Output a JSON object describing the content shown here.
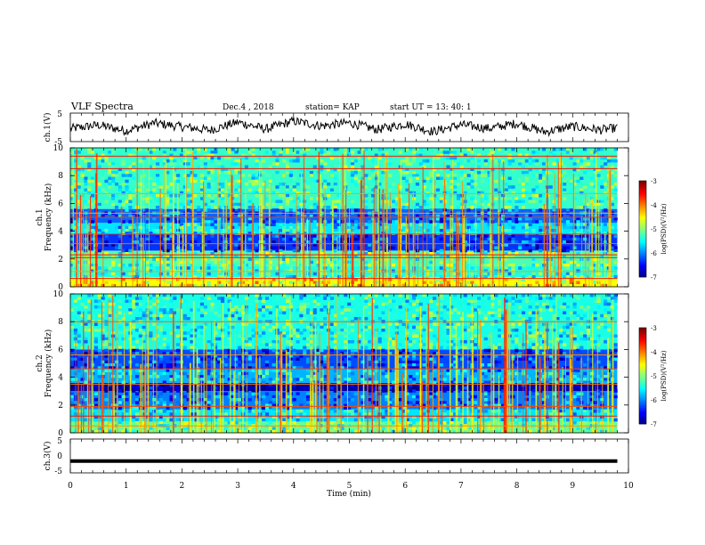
{
  "header": {
    "title": "VLF Spectra",
    "date": "Dec.4 , 2018",
    "station": "station= KAP",
    "start": "start UT = 13: 40: 1"
  },
  "colors": {
    "background": "#ffffff",
    "axes": "#000000",
    "trace": "#000000"
  },
  "chart_data": [
    {
      "type": "line",
      "name": "ch1-waveform",
      "ylabel": "ch.1(V)",
      "ylim": [
        -5,
        5
      ],
      "yticks": [
        "5",
        "-5"
      ],
      "xlim": [
        0,
        10
      ],
      "description_values": "noisy waveform oscillating roughly between -2 and +2.5 V over 0-9.8 min",
      "x": [
        0,
        0.5,
        1,
        1.5,
        2,
        2.5,
        3,
        3.5,
        4,
        4.5,
        5,
        5.5,
        6,
        6.5,
        7,
        7.5,
        8,
        8.5,
        9,
        9.5,
        9.8
      ],
      "y": [
        -0.5,
        0.8,
        -1.2,
        1.5,
        0.2,
        -1.0,
        1.8,
        -0.6,
        2.2,
        0.5,
        1.6,
        -0.8,
        1.2,
        -1.5,
        0.9,
        -0.4,
        1.4,
        -1.6,
        0.3,
        -0.9,
        -0.2
      ]
    },
    {
      "type": "heatmap",
      "name": "ch1-spectrogram",
      "ylabel": "ch.1",
      "ylabel2": "Frequency (kHz)",
      "ylim": [
        0,
        10
      ],
      "yticks": [
        "0",
        "2",
        "4",
        "6",
        "8",
        "10"
      ],
      "xlim": [
        0,
        9.8
      ],
      "colorbar": {
        "label": "log(PSD)(V²/Hz)",
        "ticks": [
          "-3",
          "-4",
          "-5",
          "-6",
          "-7"
        ],
        "range": [
          -7,
          -3
        ]
      },
      "bands": [
        {
          "f0": 0,
          "f1": 0.7,
          "level": -4.5
        },
        {
          "f0": 0.7,
          "f1": 1.5,
          "level": -5.4
        },
        {
          "f0": 1.5,
          "f1": 2.6,
          "level": -5.2
        },
        {
          "f0": 2.6,
          "f1": 3.8,
          "level": -6.3
        },
        {
          "f0": 3.8,
          "f1": 4.6,
          "level": -5.6
        },
        {
          "f0": 4.6,
          "f1": 5.6,
          "level": -6.1
        },
        {
          "f0": 5.6,
          "f1": 10,
          "level": -5.3
        }
      ],
      "lines_khz": [
        0.6,
        1.1,
        2.1,
        2.3,
        3.1,
        3.8,
        5.0,
        5.3,
        6.7,
        8.5,
        9.4
      ]
    },
    {
      "type": "heatmap",
      "name": "ch2-spectrogram",
      "ylabel": "ch.2",
      "ylabel2": "Frequency (kHz)",
      "ylim": [
        0,
        10
      ],
      "yticks": [
        "0",
        "2",
        "4",
        "6",
        "8",
        "10"
      ],
      "xlim": [
        0,
        9.8
      ],
      "colorbar": {
        "label": "log(PSD)(V²/Hz)",
        "ticks": [
          "-3",
          "-4",
          "-5",
          "-6",
          "-7"
        ],
        "range": [
          -7,
          -3
        ]
      },
      "bands": [
        {
          "f0": 0,
          "f1": 0.8,
          "level": -5.1
        },
        {
          "f0": 0.8,
          "f1": 1.7,
          "level": -5.6
        },
        {
          "f0": 1.7,
          "f1": 3.0,
          "level": -6.0
        },
        {
          "f0": 3.0,
          "f1": 3.6,
          "level": -6.8
        },
        {
          "f0": 3.6,
          "f1": 4.6,
          "level": -5.8
        },
        {
          "f0": 4.6,
          "f1": 6.0,
          "level": -6.2
        },
        {
          "f0": 6.0,
          "f1": 10,
          "level": -5.4
        }
      ],
      "lines_khz": [
        0.5,
        1.2,
        1.9,
        3.5,
        4.6,
        5.6,
        8.0
      ]
    },
    {
      "type": "line",
      "name": "ch3-waveform",
      "ylabel": "ch.3(V)",
      "ylim": [
        -5,
        5
      ],
      "yticks": [
        "5",
        "0",
        "-5"
      ],
      "xlim": [
        0,
        10
      ],
      "x": [
        0,
        9.8
      ],
      "y": [
        -1.5,
        -1.5
      ],
      "xlabel": "Time (min)",
      "xticks": [
        "0",
        "1",
        "2",
        "3",
        "4",
        "5",
        "6",
        "7",
        "8",
        "9",
        "10"
      ]
    }
  ]
}
